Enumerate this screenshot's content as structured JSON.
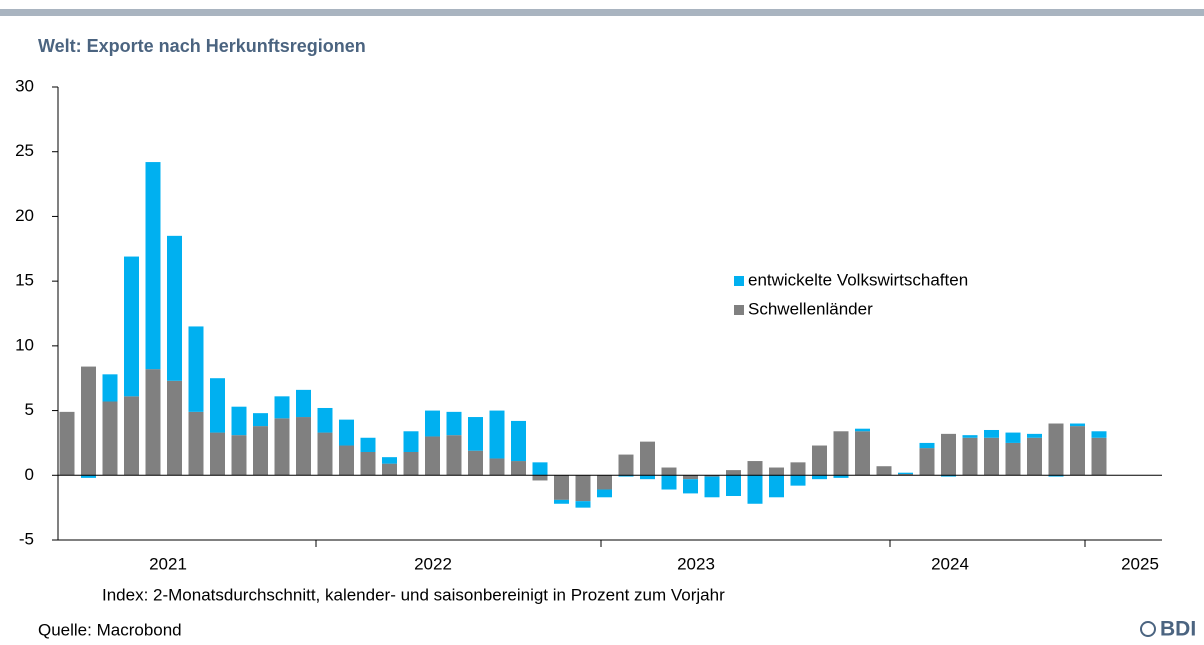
{
  "chart_data": {
    "type": "stacked_bar",
    "title": "Welt: Exporte nach Herkunftsregionen",
    "subtitle": "Index: 2-Monatsdurchschnitt, kalender- und saisonbereinigt in Prozent zum Vorjahr",
    "source": "Quelle: Macrobond",
    "logo": "BDI",
    "xtick_labels": [
      "2021",
      "2022",
      "2023",
      "2024",
      "2025"
    ],
    "categories": [
      null,
      null,
      null,
      null,
      null,
      null,
      null,
      null,
      null,
      null,
      null,
      null,
      null,
      null,
      null,
      null,
      null,
      null,
      null,
      null,
      null,
      null,
      null,
      null,
      null,
      null,
      null,
      null,
      null,
      null,
      null,
      null,
      null,
      null,
      null,
      null,
      null,
      null,
      null,
      null,
      null,
      null,
      null,
      null,
      null,
      null,
      null,
      null,
      null
    ],
    "series": [
      {
        "name": "Schwellenländer",
        "color": "#808080",
        "values": [
          4.9,
          8.4,
          5.7,
          6.1,
          8.2,
          7.3,
          4.9,
          3.3,
          3.1,
          3.8,
          4.4,
          4.5,
          3.3,
          2.3,
          1.8,
          0.9,
          1.8,
          3.0,
          3.1,
          1.9,
          1.3,
          1.1,
          -0.4,
          -1.9,
          -2.0,
          -1.1,
          1.6,
          2.6,
          0.6,
          -0.3,
          -0.1,
          0.4,
          1.1,
          0.6,
          1.0,
          2.3,
          3.4,
          3.4,
          0.7,
          0.1,
          2.1,
          3.2,
          2.9,
          2.9,
          2.5,
          2.9,
          4.0,
          3.8,
          2.9
        ]
      },
      {
        "name": "entwickelte Volkswirtschaften",
        "color": "#00b0f0",
        "values": [
          0,
          -0.2,
          2.1,
          10.8,
          16.0,
          11.2,
          6.6,
          4.2,
          2.2,
          1.0,
          1.7,
          2.1,
          1.9,
          2.0,
          1.1,
          0.5,
          1.6,
          2.0,
          1.8,
          2.6,
          3.7,
          3.1,
          1.0,
          -0.3,
          -0.5,
          -0.6,
          -0.1,
          -0.3,
          -1.1,
          -1.1,
          -1.6,
          -1.6,
          -2.2,
          -1.7,
          -0.8,
          -0.3,
          -0.2,
          0.2,
          0,
          0.1,
          0.4,
          -0.1,
          0.2,
          0.6,
          0.8,
          0.3,
          -0.1,
          0.2,
          0.5
        ]
      }
    ],
    "ylim": [
      -5,
      30
    ],
    "yticks": [
      -5,
      0,
      5,
      10,
      15,
      20,
      25,
      30
    ],
    "grid": false
  }
}
